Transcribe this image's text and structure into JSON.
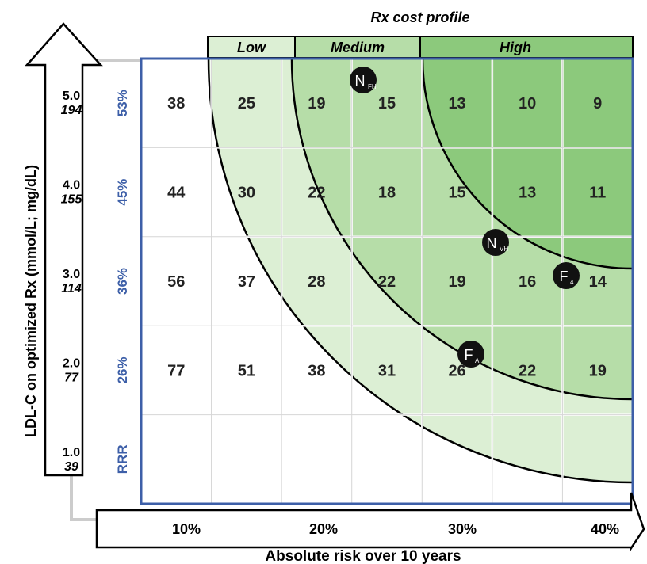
{
  "chart_data": {
    "type": "heatmap",
    "title": "Rx cost profile",
    "cost_profiles": [
      "Low",
      "Medium",
      "High"
    ],
    "ylabel": "LDL-C on optimized Rx (mmol/L; mg/dL)",
    "xlabel": "Absolute risk over 10 years",
    "x_ticks": [
      "10%",
      "20%",
      "30%",
      "40%"
    ],
    "y_ticks": [
      {
        "mmol": "5.0",
        "mgdl": "194"
      },
      {
        "mmol": "4.0",
        "mgdl": "155"
      },
      {
        "mmol": "3.0",
        "mgdl": "114"
      },
      {
        "mmol": "2.0",
        "mgdl": "77"
      },
      {
        "mmol": "1.0",
        "mgdl": "39"
      }
    ],
    "rrr_label": "RRR",
    "rrr_values": [
      "53%",
      "45%",
      "36%",
      "26%"
    ],
    "cells": [
      [
        "38",
        "25",
        "19",
        "15",
        "13",
        "10",
        "9"
      ],
      [
        "44",
        "30",
        "22",
        "18",
        "15",
        "13",
        "11"
      ],
      [
        "56",
        "37",
        "28",
        "22",
        "19",
        "16",
        "14"
      ],
      [
        "77",
        "51",
        "38",
        "31",
        "26",
        "22",
        "19"
      ]
    ],
    "markers": [
      {
        "main": "N",
        "sub": "FH"
      },
      {
        "main": "N",
        "sub": "VH"
      },
      {
        "main": "F",
        "sub": "4"
      },
      {
        "main": "F",
        "sub": "A"
      }
    ],
    "colors": {
      "low_fill": "#dcefd4",
      "medium_fill": "#b6dda8",
      "high_fill": "#8cc97c",
      "grid_border": "#3d5fa8",
      "rrr_text": "#3d5fa8",
      "marker": "#111111"
    }
  }
}
